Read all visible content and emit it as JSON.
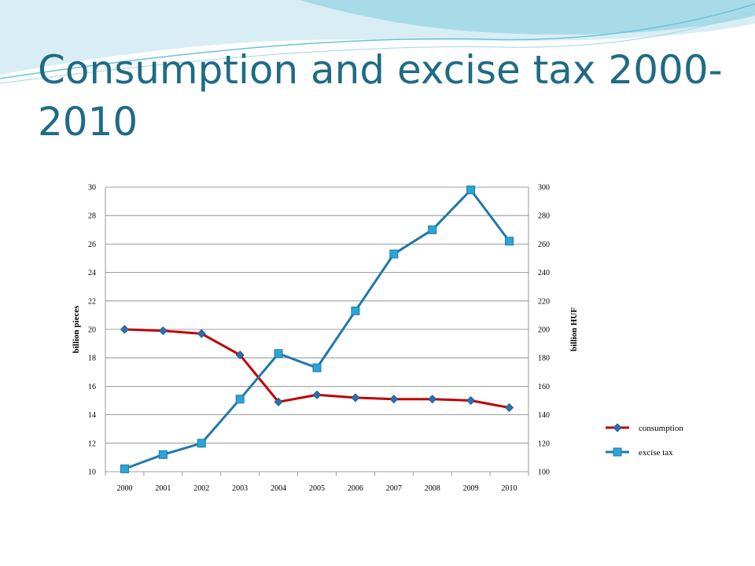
{
  "slide": {
    "title": "Consumption and excise tax 2000-2010"
  },
  "colors": {
    "title": "#1f6b86",
    "consumption": "#c00000",
    "excise_tax": "#1f78a8",
    "grid": "#7f7f7f"
  },
  "chart_data": {
    "type": "line",
    "title": "",
    "xlabel": "",
    "ylabel": "billion pieces",
    "y2label": "billion HUF",
    "categories": [
      "2000",
      "2001",
      "2002",
      "2003",
      "2004",
      "2005",
      "2006",
      "2007",
      "2008",
      "2009",
      "2010"
    ],
    "ylim": [
      10,
      30
    ],
    "y2lim": [
      100,
      300
    ],
    "yticks": [
      "10",
      "12",
      "14",
      "16",
      "18",
      "20",
      "22",
      "24",
      "26",
      "28",
      "30"
    ],
    "y2ticks": [
      "100",
      "120",
      "140",
      "160",
      "180",
      "200",
      "220",
      "240",
      "260",
      "280",
      "300"
    ],
    "grid": true,
    "legend_position": "right",
    "series": [
      {
        "name": "consumption",
        "axis": "left",
        "marker": "diamond",
        "values": [
          20.0,
          19.9,
          19.7,
          18.2,
          14.9,
          15.4,
          15.2,
          15.1,
          15.1,
          15.0,
          14.5
        ]
      },
      {
        "name": "excise tax",
        "axis": "right",
        "marker": "square",
        "values": [
          102,
          112,
          120,
          151,
          183,
          173,
          213,
          253,
          270,
          298,
          262
        ]
      }
    ]
  }
}
